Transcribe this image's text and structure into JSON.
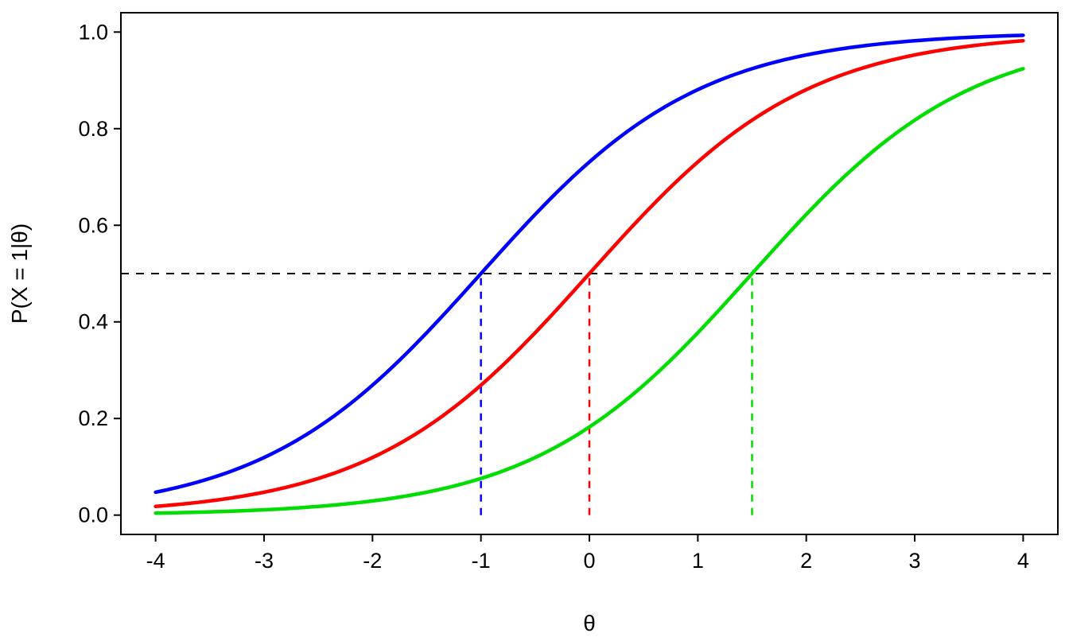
{
  "chart_data": {
    "type": "line",
    "title": "",
    "xlabel": "θ",
    "ylabel": "P(X = 1|θ)",
    "xlim": [
      -4,
      4
    ],
    "ylim": [
      0,
      1
    ],
    "grid": false,
    "legend": "none",
    "background": "#ffffff",
    "box_color": "#000000",
    "x_ticks": [
      -4,
      -3,
      -2,
      -1,
      0,
      1,
      2,
      3,
      4
    ],
    "x_tick_labels": [
      "-4",
      "-3",
      "-2",
      "-1",
      "0",
      "1",
      "2",
      "3",
      "4"
    ],
    "y_ticks": [
      0.0,
      0.2,
      0.4,
      0.6,
      0.8,
      1.0
    ],
    "y_tick_labels": [
      "0.0",
      "0.2",
      "0.4",
      "0.6",
      "0.8",
      "1.0"
    ],
    "model": "logistic item characteristic curves: P(X=1|theta) = 1 / (1 + exp(-(theta - b)))",
    "x_grid": [
      -4,
      -3.5,
      -3,
      -2.5,
      -2,
      -1.5,
      -1,
      -0.5,
      0,
      0.5,
      1,
      1.5,
      2,
      2.5,
      3,
      3.5,
      4
    ],
    "series": [
      {
        "name": "blue curve (b = -1)",
        "color": "#0000FF",
        "difficulty": -1,
        "values": [
          0.047,
          0.076,
          0.119,
          0.182,
          0.269,
          0.378,
          0.5,
          0.622,
          0.731,
          0.818,
          0.881,
          0.924,
          0.953,
          0.971,
          0.982,
          0.989,
          0.993
        ]
      },
      {
        "name": "red curve (b = 0)",
        "color": "#FF0000",
        "difficulty": 0,
        "values": [
          0.018,
          0.029,
          0.047,
          0.076,
          0.119,
          0.182,
          0.269,
          0.378,
          0.5,
          0.622,
          0.731,
          0.818,
          0.881,
          0.924,
          0.953,
          0.971,
          0.982
        ]
      },
      {
        "name": "green curve (b = 1.5)",
        "color": "#00DD00",
        "difficulty": 1.5,
        "values": [
          0.004,
          0.007,
          0.011,
          0.018,
          0.029,
          0.047,
          0.076,
          0.119,
          0.182,
          0.269,
          0.378,
          0.5,
          0.622,
          0.731,
          0.818,
          0.881,
          0.924
        ]
      }
    ],
    "reference_lines": {
      "horizontal": {
        "y": 0.5,
        "color": "#000000",
        "style": "dashed",
        "span": "full-width"
      },
      "vertical": [
        {
          "x": -1,
          "y_from": 0,
          "y_to": 0.5,
          "color": "#0000FF",
          "style": "dashed"
        },
        {
          "x": 0,
          "y_from": 0,
          "y_to": 0.5,
          "color": "#FF0000",
          "style": "dashed"
        },
        {
          "x": 1.5,
          "y_from": 0,
          "y_to": 0.5,
          "color": "#00DD00",
          "style": "dashed"
        }
      ]
    }
  }
}
